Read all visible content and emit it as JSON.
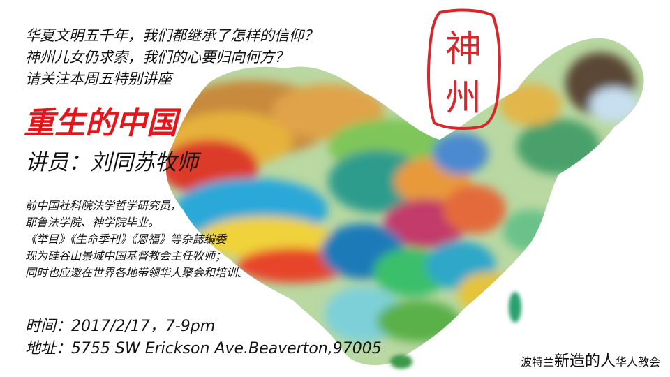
{
  "intro": {
    "line1": "华夏文明五千年，我们都继承了怎样的信仰？",
    "line2": "神州儿女仍求索，我们的心要归向何方？",
    "line3": "请关注本周五特别讲座"
  },
  "title": "重生的中国",
  "speaker": "讲员：刘同苏牧师",
  "bio": [
    "前中国社科院法学哲学研究员，",
    "耶鲁法学院、神学院毕业。",
    "《举目》《生命季刊》《恩福》等杂誌编委",
    "现为硅谷山景城中国基督教会主任牧师；",
    "同时也应邀在世界各地带领华人聚会和培训。"
  ],
  "event": {
    "time": "时间：2017/2/17，7-9pm",
    "address": "地址：5755 SW Erickson Ave.Beaverton,97005"
  },
  "church": {
    "prefix": "波特兰",
    "highlight": "新造的人",
    "suffix": "华人教会"
  },
  "seal": {
    "text": "神州"
  },
  "colors": {
    "title_red": "#e8141b",
    "seal_red": "#d8262a",
    "text": "#111111",
    "background": "#ffffff"
  }
}
